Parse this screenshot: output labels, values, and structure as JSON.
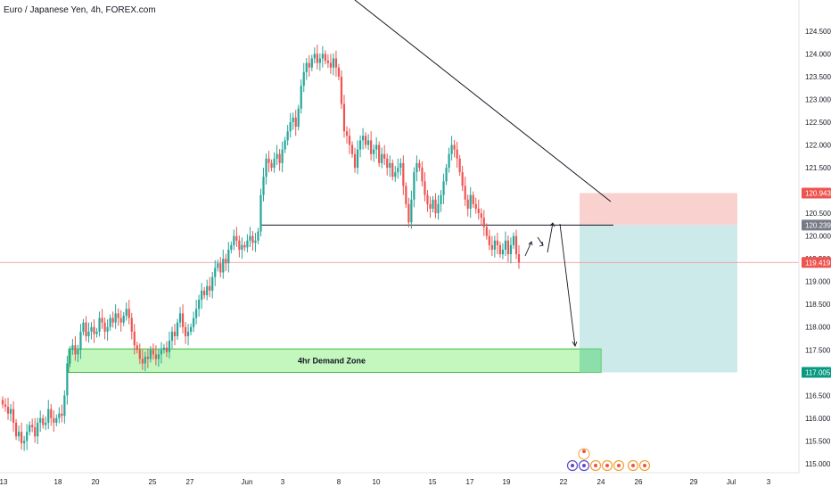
{
  "header": {
    "title": "Euro / Japanese Yen, 4h, FOREX.com"
  },
  "colors": {
    "up": "#26a69a",
    "down": "#ef5350",
    "demand_fill": "#b9f6b3",
    "demand_border": "#3fb93a",
    "stop_fill": "#f9d2d0",
    "target_fill": "#cdeaea",
    "last_price_line": "#f28b8b"
  },
  "chart_data": {
    "type": "candlestick",
    "title": "Euro / Japanese Yen, 4h, FOREX.com",
    "y_ticks": [
      "124.500",
      "124.000",
      "123.500",
      "123.000",
      "122.500",
      "122.000",
      "121.500",
      "121.000",
      "120.500",
      "120.000",
      "119.500",
      "119.000",
      "118.500",
      "118.000",
      "117.500",
      "117.000",
      "116.500",
      "116.000",
      "115.500",
      "115.000"
    ],
    "x_ticks": [
      "13",
      "18",
      "20",
      "25",
      "27",
      "Jun",
      "3",
      "8",
      "10",
      "15",
      "17",
      "19",
      "22",
      "24",
      "26",
      "29",
      "Jul",
      "3"
    ],
    "ylim": [
      114.9,
      124.85
    ],
    "price_labels": [
      {
        "label": "120.943",
        "value": 120.943,
        "kind": "stop"
      },
      {
        "label": "120.239",
        "value": 120.239,
        "kind": "entry"
      },
      {
        "label": "119.419",
        "value": 119.419,
        "kind": "last"
      },
      {
        "label": "117.005",
        "value": 117.005,
        "kind": "target"
      }
    ],
    "demand_zone": {
      "label": "4hr Demand Zone",
      "low": 117.005,
      "high": 117.52
    },
    "resistance_level": 120.239,
    "closes": [
      116.3,
      116.25,
      116.1,
      116.2,
      115.9,
      115.6,
      115.7,
      115.45,
      115.5,
      115.7,
      115.85,
      115.8,
      115.6,
      115.9,
      116.0,
      115.85,
      115.9,
      116.2,
      116.0,
      115.9,
      116.0,
      116.1,
      116.05,
      116.5,
      117.2,
      117.5,
      117.6,
      117.4,
      117.5,
      117.9,
      118.1,
      117.8,
      117.9,
      118.0,
      117.85,
      117.9,
      118.2,
      118.1,
      117.9,
      118.0,
      118.2,
      118.1,
      118.3,
      118.2,
      118.1,
      118.25,
      118.4,
      118.2,
      117.9,
      117.6,
      117.5,
      117.3,
      117.2,
      117.35,
      117.3,
      117.5,
      117.4,
      117.3,
      117.4,
      117.5,
      117.55,
      117.45,
      117.7,
      117.9,
      117.8,
      118.1,
      118.3,
      118.0,
      117.8,
      117.9,
      118.0,
      118.2,
      118.4,
      118.6,
      118.8,
      118.7,
      118.9,
      118.8,
      119.1,
      119.3,
      119.4,
      119.2,
      119.5,
      119.4,
      119.7,
      119.8,
      120.0,
      119.9,
      119.7,
      119.8,
      119.75,
      119.9,
      120.0,
      119.85,
      119.9,
      120.1,
      120.9,
      121.3,
      121.7,
      121.6,
      121.5,
      121.7,
      121.8,
      121.6,
      121.9,
      122.1,
      122.3,
      122.5,
      122.6,
      122.4,
      122.8,
      123.3,
      123.6,
      123.8,
      123.7,
      123.9,
      124.0,
      123.8,
      123.9,
      124.0,
      123.85,
      123.8,
      123.7,
      123.9,
      123.7,
      123.5,
      122.9,
      122.3,
      122.2,
      122.0,
      121.8,
      121.5,
      121.9,
      122.1,
      122.2,
      122.0,
      122.1,
      121.8,
      121.9,
      122.0,
      121.6,
      121.8,
      121.7,
      121.5,
      121.6,
      121.3,
      121.4,
      121.5,
      121.6,
      121.1,
      120.7,
      120.3,
      120.8,
      121.4,
      121.6,
      121.5,
      121.2,
      120.9,
      120.7,
      120.6,
      120.8,
      120.5,
      120.7,
      120.9,
      121.2,
      121.5,
      121.8,
      122.0,
      121.9,
      121.7,
      121.4,
      121.1,
      120.8,
      120.6,
      120.9,
      120.7,
      120.6,
      120.5,
      120.4,
      120.2,
      120.0,
      119.8,
      119.7,
      119.9,
      119.8,
      119.6,
      119.7,
      119.9,
      119.6,
      119.8,
      120.0,
      119.6,
      119.419
    ]
  }
}
